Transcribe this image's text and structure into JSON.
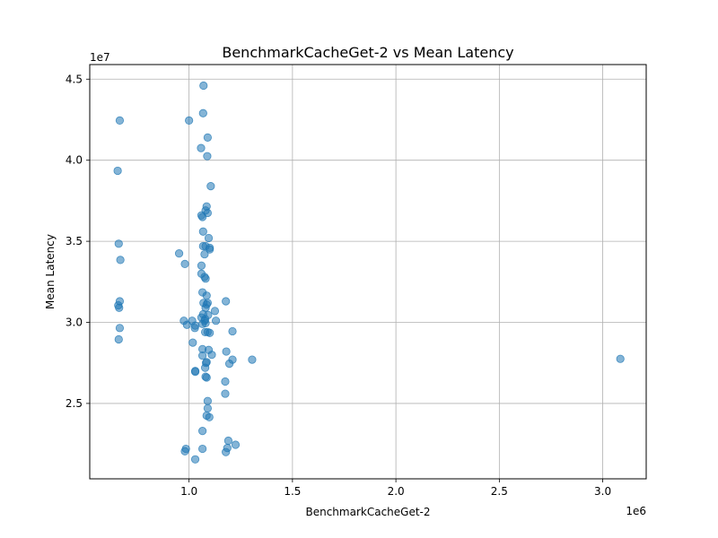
{
  "chart_data": {
    "type": "scatter",
    "title": "BenchmarkCacheGet-2 vs Mean Latency",
    "xlabel": "BenchmarkCacheGet-2",
    "ylabel": "Mean Latency",
    "x_offset_label": "1e6",
    "y_offset_label": "1e7",
    "x_scale": 1000000,
    "y_scale": 10000000,
    "xlim": [
      520000,
      3210000
    ],
    "ylim": [
      20350000,
      45900000
    ],
    "x_ticks": [
      1.0,
      1.5,
      2.0,
      2.5,
      3.0
    ],
    "x_tick_labels": [
      "1.0",
      "1.5",
      "2.0",
      "2.5",
      "3.0"
    ],
    "y_ticks": [
      2.5,
      3.0,
      3.5,
      4.0,
      4.5
    ],
    "y_tick_labels": [
      "2.5",
      "3.0",
      "3.5",
      "4.0",
      "4.5"
    ],
    "grid": true,
    "point_color": "#1f77b4",
    "point_alpha": 0.55,
    "points": [
      [
        1070000,
        44600000
      ],
      [
        1068000,
        42900000
      ],
      [
        1000000,
        42450000
      ],
      [
        1090000,
        41400000
      ],
      [
        1058000,
        40750000
      ],
      [
        1088000,
        40250000
      ],
      [
        1105000,
        38400000
      ],
      [
        1085000,
        37150000
      ],
      [
        1080000,
        36900000
      ],
      [
        1090000,
        36750000
      ],
      [
        1060000,
        36600000
      ],
      [
        1065000,
        36500000
      ],
      [
        1068000,
        35600000
      ],
      [
        1095000,
        35200000
      ],
      [
        1068000,
        34700000
      ],
      [
        1080000,
        34700000
      ],
      [
        1100000,
        34600000
      ],
      [
        1100000,
        34500000
      ],
      [
        1075000,
        34200000
      ],
      [
        1060000,
        33500000
      ],
      [
        1060000,
        33000000
      ],
      [
        1075000,
        32800000
      ],
      [
        1080000,
        32700000
      ],
      [
        1065000,
        31850000
      ],
      [
        1085000,
        31650000
      ],
      [
        1070000,
        31200000
      ],
      [
        1090000,
        31200000
      ],
      [
        1085000,
        31100000
      ],
      [
        1178000,
        31300000
      ],
      [
        1080000,
        30900000
      ],
      [
        1125000,
        30700000
      ],
      [
        1068000,
        30500000
      ],
      [
        1092000,
        30450000
      ],
      [
        1060000,
        30300000
      ],
      [
        1078000,
        30200000
      ],
      [
        1075000,
        30100000
      ],
      [
        1130000,
        30100000
      ],
      [
        1080000,
        29950000
      ],
      [
        1065000,
        29900000
      ],
      [
        1090000,
        29400000
      ],
      [
        1100000,
        29350000
      ],
      [
        1078000,
        29400000
      ],
      [
        1210000,
        29450000
      ],
      [
        1065000,
        28350000
      ],
      [
        1095000,
        28300000
      ],
      [
        1065000,
        27950000
      ],
      [
        1110000,
        28000000
      ],
      [
        1180000,
        28200000
      ],
      [
        1210000,
        27700000
      ],
      [
        1305000,
        27700000
      ],
      [
        1085000,
        27550000
      ],
      [
        1082000,
        27500000
      ],
      [
        1195000,
        27450000
      ],
      [
        1078000,
        27200000
      ],
      [
        1030000,
        27000000
      ],
      [
        1030000,
        26950000
      ],
      [
        1080000,
        26650000
      ],
      [
        1085000,
        26600000
      ],
      [
        1175000,
        26350000
      ],
      [
        1175000,
        25600000
      ],
      [
        1090000,
        25150000
      ],
      [
        1090000,
        24700000
      ],
      [
        1085000,
        24250000
      ],
      [
        1098000,
        24150000
      ],
      [
        1065000,
        23300000
      ],
      [
        1190000,
        22700000
      ],
      [
        1225000,
        22450000
      ],
      [
        1185000,
        22250000
      ],
      [
        1065000,
        22200000
      ],
      [
        1178000,
        22000000
      ],
      [
        985000,
        22200000
      ],
      [
        980000,
        22050000
      ],
      [
        1030000,
        21550000
      ],
      [
        952000,
        34250000
      ],
      [
        980000,
        33600000
      ],
      [
        975000,
        30100000
      ],
      [
        990000,
        29850000
      ],
      [
        1030000,
        29800000
      ],
      [
        1015000,
        30100000
      ],
      [
        1028000,
        29650000
      ],
      [
        1018000,
        28750000
      ],
      [
        3085000,
        27750000
      ],
      [
        665000,
        42450000
      ],
      [
        655000,
        39350000
      ],
      [
        660000,
        34850000
      ],
      [
        668000,
        33850000
      ],
      [
        665000,
        31300000
      ],
      [
        658000,
        31050000
      ],
      [
        662000,
        30900000
      ],
      [
        665000,
        29650000
      ],
      [
        660000,
        28950000
      ]
    ]
  }
}
